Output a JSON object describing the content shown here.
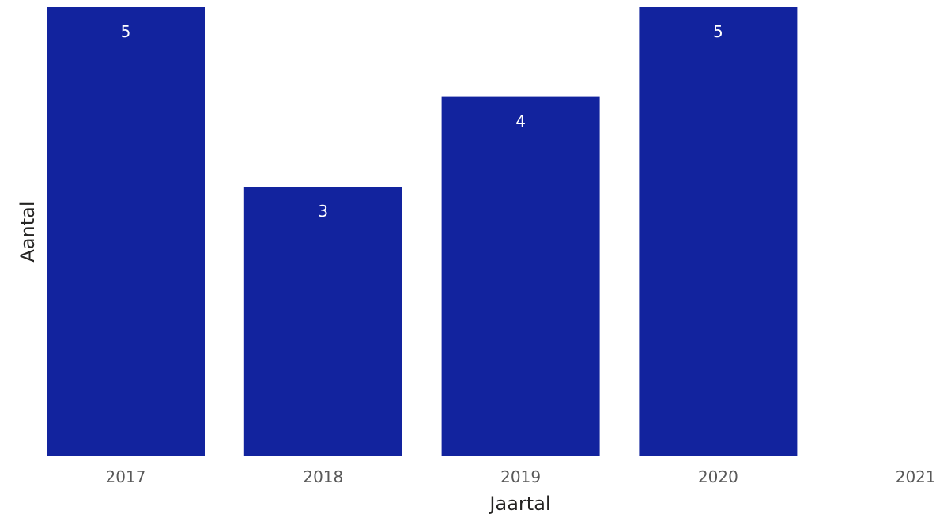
{
  "chart_data": {
    "type": "bar",
    "categories": [
      "2017",
      "2018",
      "2019",
      "2020",
      "2021"
    ],
    "values": [
      5,
      3,
      4,
      5,
      0
    ],
    "data_labels": [
      "5",
      "3",
      "4",
      "5",
      ""
    ],
    "title": "",
    "xlabel": "Jaartal",
    "ylabel": "Aantal",
    "ylim": [
      0,
      5
    ],
    "grid": false,
    "legend": "none",
    "bar_color": "#12239E",
    "data_label_color": "#FFFFFF"
  }
}
